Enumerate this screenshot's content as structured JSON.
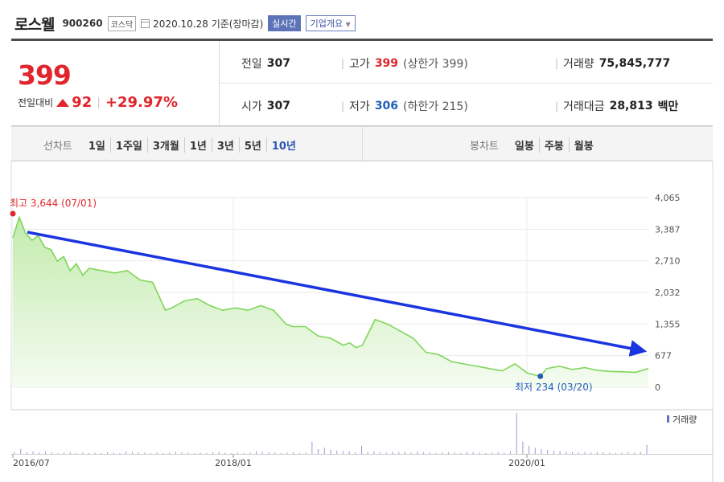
{
  "header": {
    "name": "로스웰",
    "code": "900260",
    "market": "코스닥",
    "date": "2020.10.28 기준(장마감)",
    "realtime": "실시간",
    "overview": "기업개요"
  },
  "quote": {
    "price": "399",
    "change_label": "전일대비",
    "change": "92",
    "change_pct": "+29.97%",
    "prev_label": "전일",
    "prev": "307",
    "high_label": "고가",
    "high": "399",
    "high_limit": "(상한가 399)",
    "volume_label": "거래량",
    "volume": "75,845,777",
    "open_label": "시가",
    "open": "307",
    "low_label": "저가",
    "low": "306",
    "low_limit": "(하한가 215)",
    "value_label": "거래대금",
    "value": "28,813",
    "value_unit": "백만"
  },
  "tabs": {
    "line_label": "선차트",
    "line_items": [
      "1일",
      "1주일",
      "3개월",
      "1년",
      "3년",
      "5년",
      "10년"
    ],
    "selected": "10년",
    "candle_label": "봉차트",
    "candle_items": [
      "일봉",
      "주봉",
      "월봉"
    ]
  },
  "colors": {
    "up": "#e0262c",
    "down": "#1f5fb8",
    "line": "#7fd65a",
    "arrow": "#1a35e0"
  },
  "chart_data": {
    "type": "area",
    "yticks": [
      "4,065",
      "3,387",
      "2,710",
      "2,032",
      "1,355",
      "677",
      "0"
    ],
    "ylim": [
      0,
      4065
    ],
    "xticks": [
      "2016/07",
      "2018/01",
      "2020/01"
    ],
    "max_label": "최고 3,644 (07/01)",
    "min_label": "최저 234 (03/20)",
    "volume_legend": "거래량",
    "series": [
      {
        "x": [
          0,
          0.01,
          0.02,
          0.03,
          0.04,
          0.05,
          0.06,
          0.07,
          0.08,
          0.09,
          0.1,
          0.11,
          0.12,
          0.14,
          0.16,
          0.18,
          0.2,
          0.22,
          0.24,
          0.25,
          0.27,
          0.29,
          0.31,
          0.33,
          0.35,
          0.37,
          0.39,
          0.41,
          0.43,
          0.44,
          0.46,
          0.48,
          0.5,
          0.52,
          0.53,
          0.54,
          0.55,
          0.57,
          0.59,
          0.61,
          0.63,
          0.65,
          0.67,
          0.69,
          0.71,
          0.73,
          0.75,
          0.77,
          0.79,
          0.81,
          0.83,
          0.84,
          0.86,
          0.88,
          0.9,
          0.92,
          0.94,
          0.96,
          0.98,
          1.0
        ],
        "y": [
          3200,
          3644,
          3300,
          3150,
          3250,
          3000,
          2950,
          2700,
          2800,
          2500,
          2650,
          2400,
          2550,
          2500,
          2450,
          2500,
          2300,
          2250,
          1650,
          1700,
          1850,
          1900,
          1750,
          1650,
          1700,
          1650,
          1750,
          1650,
          1350,
          1300,
          1300,
          1100,
          1050,
          900,
          950,
          850,
          900,
          1450,
          1350,
          1200,
          1050,
          750,
          700,
          550,
          500,
          450,
          400,
          350,
          500,
          300,
          234,
          400,
          450,
          380,
          420,
          360,
          340,
          330,
          320,
          399
        ]
      }
    ],
    "volume": [
      0.05,
      0.12,
      0.04,
      0.06,
      0.03,
      0.05,
      0.04,
      0.02,
      0.03,
      0.04,
      0.02,
      0.03,
      0.02,
      0.03,
      0.02,
      0.04,
      0.03,
      0.02,
      0.06,
      0.05,
      0.04,
      0.03,
      0.02,
      0.03,
      0.02,
      0.03,
      0.05,
      0.04,
      0.03,
      0.02,
      0.03,
      0.02,
      0.04,
      0.05,
      0.03,
      0.02,
      0.03,
      0.02,
      0.03,
      0.06,
      0.05,
      0.04,
      0.03,
      0.02,
      0.03,
      0.04,
      0.02,
      0.03,
      0.3,
      0.12,
      0.15,
      0.1,
      0.08,
      0.07,
      0.06,
      0.04,
      0.2,
      0.05,
      0.06,
      0.04,
      0.03,
      0.05,
      0.04,
      0.06,
      0.03,
      0.05,
      0.04,
      0.03,
      0.02,
      0.03,
      0.04,
      0.03,
      0.02,
      0.05,
      0.04,
      0.03,
      0.02,
      0.03,
      0.04,
      0.03,
      0.06,
      1.0,
      0.3,
      0.2,
      0.15,
      0.12,
      0.1,
      0.08,
      0.07,
      0.05,
      0.04,
      0.03,
      0.04,
      0.03,
      0.05,
      0.04,
      0.03,
      0.02,
      0.03,
      0.04,
      0.03,
      0.05,
      0.22
    ]
  }
}
